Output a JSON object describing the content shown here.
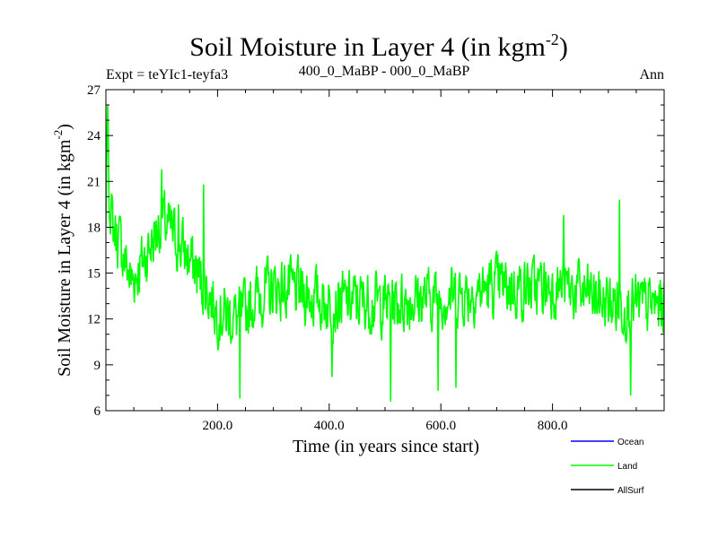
{
  "chart_data": {
    "type": "line",
    "title": "Soil Moisture in Layer 4 (in kgm",
    "title_superscript": "-2",
    "title_close": ")",
    "subtitle_left": "Expt = teYIc1-teyfa3",
    "subtitle_center": "400_0_MaBP - 000_0_MaBP",
    "subtitle_right": "Ann",
    "xlabel": "Time (in years since start)",
    "ylabel": "Soil Moisture in Layer 4 (in kgm",
    "ylabel_superscript": "-2",
    "ylabel_close": ")",
    "xlim": [
      0,
      1000
    ],
    "ylim": [
      6,
      27
    ],
    "x_ticks": [
      200,
      400,
      600,
      800
    ],
    "x_tick_labels": [
      "200.0",
      "400.0",
      "600.0",
      "800.0"
    ],
    "y_ticks": [
      6,
      9,
      12,
      15,
      18,
      21,
      24,
      27
    ],
    "y_tick_labels": [
      "6",
      "9",
      "12",
      "15",
      "18",
      "21",
      "24",
      "27"
    ],
    "noise_seed": 7,
    "series": [
      {
        "name": "Ocean",
        "color": "#0000ff",
        "values": []
      },
      {
        "name": "Land",
        "color": "#00ff00",
        "anchors": [
          [
            0,
            18.5
          ],
          [
            3,
            26.0
          ],
          [
            6,
            19.5
          ],
          [
            12,
            18.2
          ],
          [
            25,
            17.0
          ],
          [
            45,
            14.5
          ],
          [
            70,
            16.0
          ],
          [
            100,
            18.5
          ],
          [
            140,
            16.5
          ],
          [
            180,
            14.0
          ],
          [
            200,
            12.5
          ],
          [
            240,
            12.0
          ],
          [
            270,
            13.5
          ],
          [
            300,
            14.0
          ],
          [
            350,
            13.8
          ],
          [
            400,
            13.0
          ],
          [
            450,
            13.2
          ],
          [
            500,
            13.0
          ],
          [
            550,
            13.3
          ],
          [
            600,
            13.5
          ],
          [
            650,
            13.7
          ],
          [
            700,
            14.2
          ],
          [
            750,
            14.0
          ],
          [
            800,
            14.2
          ],
          [
            850,
            13.8
          ],
          [
            900,
            13.0
          ],
          [
            950,
            12.8
          ],
          [
            1000,
            13.0
          ]
        ],
        "extremes": [
          [
            3,
            26.0
          ],
          [
            100,
            21.8
          ],
          [
            130,
            19.5
          ],
          [
            175,
            20.8
          ],
          [
            240,
            6.8
          ],
          [
            510,
            6.6
          ],
          [
            595,
            7.3
          ],
          [
            627,
            7.5
          ],
          [
            820,
            18.8
          ],
          [
            920,
            19.8
          ],
          [
            940,
            7.0
          ],
          [
            405,
            8.2
          ]
        ]
      },
      {
        "name": "AllSurf",
        "color": "#000000",
        "values": []
      }
    ],
    "legend": [
      "Ocean",
      "Land",
      "AllSurf"
    ],
    "legend_placement": "bottom-right"
  }
}
